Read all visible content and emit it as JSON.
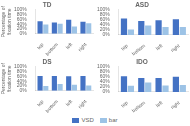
{
  "chart_data": [
    {
      "type": "bar",
      "title": "TD",
      "categories": [
        "top",
        "bottom",
        "left",
        "right"
      ],
      "series": [
        {
          "name": "VSD",
          "color": "#4472c4",
          "values": [
            52,
            47,
            58,
            50
          ]
        },
        {
          "name": "bar",
          "color": "#9dc3e6",
          "values": [
            38,
            42,
            30,
            44
          ]
        }
      ],
      "ylabel": "Percentage of fixation time",
      "ylim": [
        0,
        100
      ],
      "yticks": [
        {
          "value": 0,
          "label": "0%"
        },
        {
          "value": 20,
          "label": "20%"
        },
        {
          "value": 40,
          "label": "40%"
        },
        {
          "value": 60,
          "label": "60%"
        },
        {
          "value": 80,
          "label": "80%"
        },
        {
          "value": 100,
          "label": "100%"
        }
      ],
      "grid": false
    },
    {
      "type": "bar",
      "title": "ASD",
      "categories": [
        "top",
        "bottom",
        "left",
        "right"
      ],
      "series": [
        {
          "name": "VSD",
          "color": "#4472c4",
          "values": [
            65,
            55,
            58,
            62
          ]
        },
        {
          "name": "bar",
          "color": "#9dc3e6",
          "values": [
            22,
            38,
            32,
            32
          ]
        }
      ],
      "ylim": [
        0,
        100
      ],
      "yticks": [
        {
          "value": 0,
          "label": "0%"
        },
        {
          "value": 20,
          "label": "20%"
        },
        {
          "value": 40,
          "label": "40%"
        },
        {
          "value": 60,
          "label": "60%"
        },
        {
          "value": 80,
          "label": "80%"
        },
        {
          "value": 100,
          "label": "100%"
        }
      ],
      "grid": false
    },
    {
      "type": "bar",
      "title": "DS",
      "categories": [
        "top",
        "bottom",
        "left",
        "right"
      ],
      "series": [
        {
          "name": "VSD",
          "color": "#4472c4",
          "values": [
            62,
            62,
            60,
            62
          ]
        },
        {
          "name": "bar",
          "color": "#9dc3e6",
          "values": [
            20,
            28,
            25,
            22
          ]
        }
      ],
      "ylabel": "Percentage of fixation time",
      "ylim": [
        0,
        100
      ],
      "yticks": [
        {
          "value": 0,
          "label": "0%"
        },
        {
          "value": 20,
          "label": "20%"
        },
        {
          "value": 40,
          "label": "40%"
        },
        {
          "value": 60,
          "label": "60%"
        },
        {
          "value": 80,
          "label": "80%"
        },
        {
          "value": 100,
          "label": "100%"
        }
      ],
      "grid": false
    },
    {
      "type": "bar",
      "title": "IDO",
      "categories": [
        "top",
        "bottom",
        "left",
        "right"
      ],
      "series": [
        {
          "name": "VSD",
          "color": "#4472c4",
          "values": [
            62,
            55,
            55,
            60
          ]
        },
        {
          "name": "bar",
          "color": "#9dc3e6",
          "values": [
            25,
            38,
            26,
            28
          ]
        }
      ],
      "ylim": [
        0,
        100
      ],
      "yticks": [
        {
          "value": 0,
          "label": "0%"
        },
        {
          "value": 20,
          "label": "20%"
        },
        {
          "value": 40,
          "label": "40%"
        },
        {
          "value": 60,
          "label": "60%"
        },
        {
          "value": 80,
          "label": "80%"
        },
        {
          "value": 100,
          "label": "100%"
        }
      ],
      "grid": false
    }
  ]
}
